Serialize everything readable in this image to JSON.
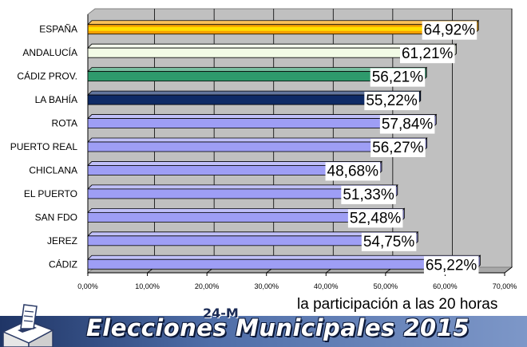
{
  "chart_data": {
    "type": "bar",
    "orientation": "horizontal",
    "categories": [
      "ESPAÑA",
      "ANDALUCÍA",
      "CÁDIZ PROV.",
      "LA BAHÍA",
      "ROTA",
      "PUERTO REAL",
      "CHICLANA",
      "EL PUERTO",
      "SAN FDO",
      "JEREZ",
      "CÁDIZ"
    ],
    "values": [
      64.92,
      61.21,
      56.21,
      55.22,
      57.84,
      56.27,
      48.68,
      51.33,
      52.48,
      54.75,
      65.22
    ],
    "value_labels": [
      "64,92%",
      "61,21%",
      "56,21%",
      "55,22%",
      "57,84%",
      "56,27%",
      "48,68%",
      "51,33%",
      "52,48%",
      "54,75%",
      "65,22%"
    ],
    "bar_colors": [
      "#f5a000",
      "#f2fbe6",
      "#2e9a6c",
      "#0e2a66",
      "#9e9ef5",
      "#9e9ef5",
      "#9e9ef5",
      "#9e9ef5",
      "#9e9ef5",
      "#9e9ef5",
      "#9e9ef5"
    ],
    "xlim": [
      0,
      70
    ],
    "xticks": [
      0,
      10,
      20,
      30,
      40,
      50,
      60,
      70
    ],
    "xtick_labels": [
      "0,00%",
      "10,00%",
      "20,00%",
      "30,00%",
      "40,00%",
      "50,00%",
      "60,00%",
      "70,00%"
    ],
    "grid": true,
    "plot_background": "#c0c0c0",
    "legend": "none"
  },
  "subtitle": "la participación a las 20 horas",
  "banner": {
    "badge": "24-M",
    "title": "Elecciones Municipales 2015",
    "icon": "ballot-box-icon"
  }
}
